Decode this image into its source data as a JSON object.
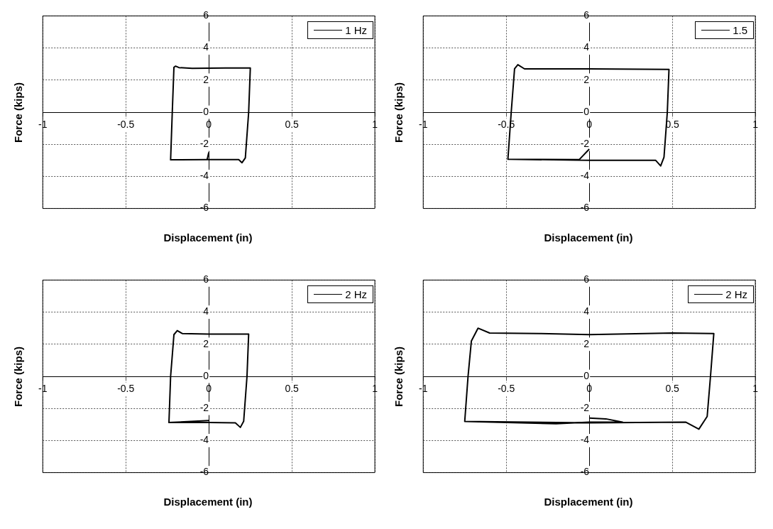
{
  "chart_data": [
    {
      "type": "line",
      "xlabel": "Displacement (in)",
      "ylabel": "Force (kips)",
      "xlim": [
        -1,
        1
      ],
      "ylim": [
        -6,
        6
      ],
      "xticks": [
        -1,
        -0.5,
        0,
        0.5,
        1
      ],
      "yticks": [
        -6,
        -4,
        -2,
        0,
        2,
        4,
        6
      ],
      "grid": true,
      "legend": "top right",
      "marker": "none",
      "line_style": "solid",
      "series": [
        {
          "name": "1 Hz",
          "color": "#000000",
          "x": [
            0,
            -0.01,
            -0.23,
            -0.22,
            -0.21,
            -0.2,
            -0.18,
            -0.1,
            0.1,
            0.25,
            0.24,
            0.22,
            0.2,
            0.18,
            0,
            -0.23
          ],
          "values": [
            -2.5,
            -2.95,
            -2.97,
            0,
            2.8,
            2.87,
            2.78,
            2.73,
            2.75,
            2.75,
            0,
            -2.85,
            -3.15,
            -2.95,
            -2.95,
            -2.97
          ]
        }
      ]
    },
    {
      "type": "line",
      "xlabel": "Displacement (in)",
      "ylabel": "Force (kips)",
      "xlim": [
        -1,
        1
      ],
      "ylim": [
        -6,
        6
      ],
      "xticks": [
        -1,
        -0.5,
        0,
        0.5,
        1
      ],
      "yticks": [
        -6,
        -4,
        -2,
        0,
        2,
        4,
        6
      ],
      "grid": true,
      "legend": "top right",
      "marker": "none",
      "line_style": "solid",
      "series": [
        {
          "name": "1.5",
          "color": "#000000",
          "x": [
            0,
            -0.06,
            -0.49,
            -0.47,
            -0.45,
            -0.43,
            -0.39,
            0,
            0.48,
            0.47,
            0.45,
            0.43,
            0.4,
            0,
            -0.49
          ],
          "values": [
            -2.3,
            -2.95,
            -2.93,
            0,
            2.7,
            2.96,
            2.7,
            2.7,
            2.67,
            0,
            -2.8,
            -3.35,
            -3.0,
            -3.0,
            -2.93
          ]
        }
      ]
    },
    {
      "type": "line",
      "xlabel": "Displacement (in)",
      "ylabel": "Force (kips)",
      "xlim": [
        -1,
        1
      ],
      "ylim": [
        -6,
        6
      ],
      "xticks": [
        -1,
        -0.5,
        0,
        0.5,
        1
      ],
      "yticks": [
        -6,
        -4,
        -2,
        0,
        2,
        4,
        6
      ],
      "grid": true,
      "legend": "top right",
      "marker": "none",
      "line_style": "solid",
      "series": [
        {
          "name": "2 Hz",
          "color": "#000000",
          "x": [
            0,
            -0.24,
            -0.23,
            -0.21,
            -0.19,
            -0.16,
            0,
            0.24,
            0.23,
            0.21,
            0.19,
            0.16,
            0,
            -0.24
          ],
          "values": [
            -2.75,
            -2.88,
            0,
            2.6,
            2.85,
            2.67,
            2.63,
            2.63,
            0,
            -2.8,
            -3.18,
            -2.9,
            -2.88,
            -2.88
          ]
        }
      ]
    },
    {
      "type": "line",
      "xlabel": "Displacement (in)",
      "ylabel": "Force (kips)",
      "xlim": [
        -1,
        1
      ],
      "ylim": [
        -6,
        6
      ],
      "xticks": [
        -1,
        -0.5,
        0,
        0.5,
        1
      ],
      "yticks": [
        -6,
        -4,
        -2,
        0,
        2,
        4,
        6
      ],
      "grid": true,
      "legend": "top right",
      "marker": "none",
      "line_style": "solid",
      "series": [
        {
          "name": "2 Hz",
          "color": "#000000",
          "x": [
            0,
            0.1,
            0.2,
            0,
            -0.2,
            -0.75,
            -0.73,
            -0.71,
            -0.67,
            -0.6,
            -0.3,
            0,
            0.5,
            0.75,
            0.73,
            0.71,
            0.66,
            0.58,
            0,
            -0.75
          ],
          "values": [
            -2.6,
            -2.65,
            -2.85,
            -2.85,
            -2.95,
            -2.81,
            0,
            2.2,
            3.0,
            2.7,
            2.67,
            2.6,
            2.7,
            2.67,
            0,
            -2.5,
            -3.29,
            -2.85,
            -2.9,
            -2.81
          ]
        }
      ]
    }
  ]
}
